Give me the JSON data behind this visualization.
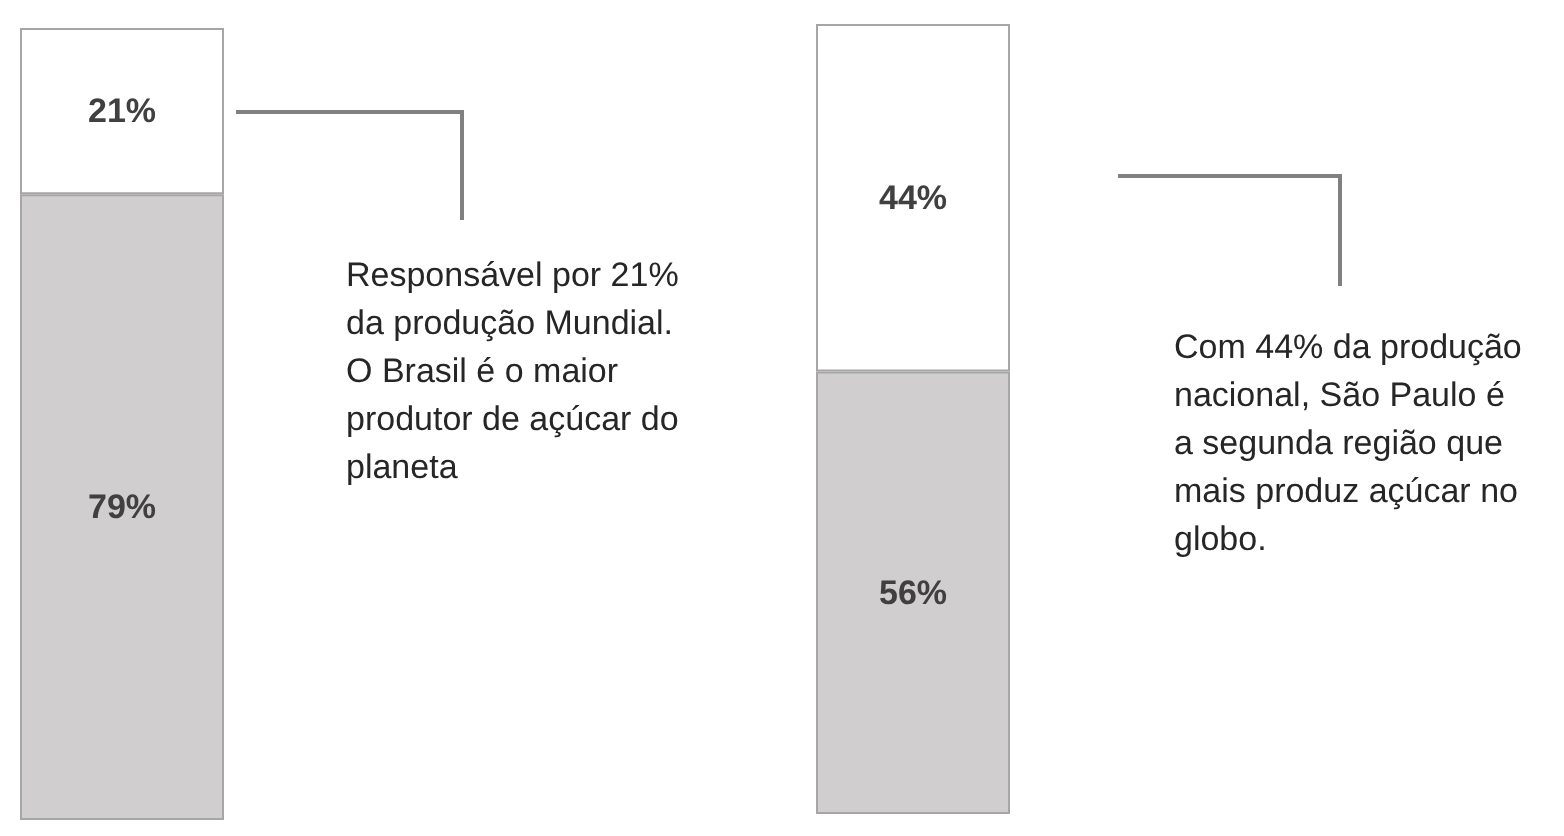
{
  "chart_data": [
    {
      "type": "bar",
      "stacked": true,
      "categories": [
        null
      ],
      "ylim": [
        0,
        100
      ],
      "tick_labels": false,
      "series": [
        {
          "color": "#d0cece",
          "values": [
            79
          ],
          "value_labels": [
            "79%"
          ]
        },
        {
          "color": "#ffffff",
          "values": [
            21
          ],
          "value_labels": [
            "21%"
          ]
        }
      ],
      "annotations": [
        "Responsável por 21%\nda produção Mundial.\nO Brasil é o maior\nprodutor de açúcar do\nplaneta"
      ]
    },
    {
      "type": "bar",
      "stacked": true,
      "categories": [
        null
      ],
      "ylim": [
        0,
        100
      ],
      "tick_labels": false,
      "series": [
        {
          "color": "#d0cece",
          "values": [
            56
          ],
          "value_labels": [
            "56%"
          ]
        },
        {
          "color": "#ffffff",
          "values": [
            44
          ],
          "value_labels": [
            "44%"
          ]
        }
      ],
      "annotations": [
        "Com 44% da produção\nnacional, São Paulo é\na segunda região que\nmais produz açúcar no\nglobo."
      ]
    }
  ]
}
